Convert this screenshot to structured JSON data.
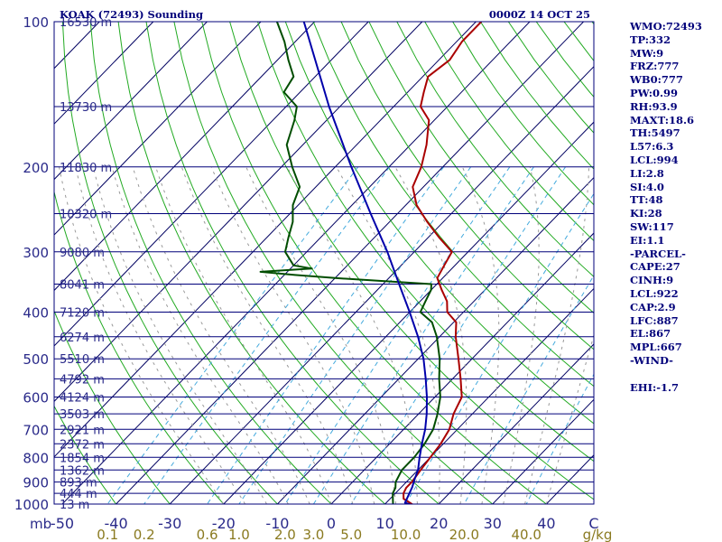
{
  "header": {
    "station": "KOAK (72493) Sounding",
    "time": "0000Z 14 OCT 25"
  },
  "indices": [
    "WMO:72493",
    "TP:332",
    "MW:9",
    "FRZ:777",
    "WB0:777",
    "PW:0.99",
    "RH:93.9",
    "MAXT:18.6",
    "TH:5497",
    "L57:6.3",
    "LCL:994",
    "LI:2.8",
    "SI:4.0",
    "TT:48",
    "KI:28",
    "SW:117",
    "EI:1.1",
    "-PARCEL-",
    "CAPE:27",
    "CINH:9",
    "LCL:922",
    "CAP:2.9",
    "LFC:887",
    "EL:867",
    "MPL:667",
    "-WIND-",
    "",
    "EHI:-1.7"
  ],
  "colors": {
    "frame": "#00007a",
    "isobar": "#00007a",
    "isotherm": "#000060",
    "dry_adiabat": "#22aa22",
    "moist_adiabat": "#999999",
    "mixing_ratio": "#44aadd",
    "temperature": "#aa0000",
    "dewpoint": "#004d00",
    "parcel": "#0000aa",
    "pressure_label": "#2a2a8a",
    "temp_label": "#2a2a8a",
    "mixing_label": "#8a7a20",
    "height_label": "#2a2a8a"
  },
  "chart_data": {
    "type": "line",
    "subtype": "skew-T log-p sounding",
    "pressure_axis_mb": [
      100,
      200,
      300,
      400,
      500,
      600,
      700,
      800,
      900,
      1000
    ],
    "pressure_axis_unit": "mb",
    "temperature_ticks_c": [
      "-50",
      "-40",
      "-30",
      "-20",
      "-10",
      "0",
      "10",
      "20",
      "30",
      "40"
    ],
    "temperature_axis_unit": "C",
    "mixing_ratio_ticks": [
      "0.1",
      "0.2",
      "0.6",
      "1.0",
      "2.0",
      "3.0",
      "5.0",
      "10.0",
      "20.0",
      "40.0"
    ],
    "mixing_ratio_unit": "g/kg",
    "height_levels": [
      {
        "p": 100,
        "label": "16530 m"
      },
      {
        "p": 150,
        "label": "13730 m"
      },
      {
        "p": 200,
        "label": "11830 m"
      },
      {
        "p": 250,
        "label": "10320 m"
      },
      {
        "p": 300,
        "label": "9080 m"
      },
      {
        "p": 350,
        "label": "8041 m"
      },
      {
        "p": 400,
        "label": "7120 m"
      },
      {
        "p": 450,
        "label": "6274 m"
      },
      {
        "p": 500,
        "label": "5510 m"
      },
      {
        "p": 550,
        "label": "4792 m"
      },
      {
        "p": 600,
        "label": "4124 m"
      },
      {
        "p": 650,
        "label": "3503 m"
      },
      {
        "p": 700,
        "label": "2921 m"
      },
      {
        "p": 750,
        "label": "2372 m"
      },
      {
        "p": 800,
        "label": "1854 m"
      },
      {
        "p": 850,
        "label": "1362 m"
      },
      {
        "p": 900,
        "label": "893 m"
      },
      {
        "p": 950,
        "label": "444 m"
      },
      {
        "p": 1000,
        "label": "13 m"
      }
    ],
    "series": [
      {
        "name": "temperature",
        "points": [
          [
            1013,
            16.5
          ],
          [
            1000,
            15
          ],
          [
            975,
            12.5
          ],
          [
            950,
            11.5
          ],
          [
            925,
            11
          ],
          [
            900,
            11
          ],
          [
            850,
            10.5
          ],
          [
            800,
            10
          ],
          [
            750,
            9.5
          ],
          [
            700,
            8.5
          ],
          [
            650,
            6.5
          ],
          [
            600,
            5
          ],
          [
            550,
            1.5
          ],
          [
            500,
            -2.5
          ],
          [
            450,
            -7
          ],
          [
            420,
            -9.5
          ],
          [
            400,
            -13
          ],
          [
            380,
            -15
          ],
          [
            360,
            -18
          ],
          [
            340,
            -21
          ],
          [
            320,
            -22
          ],
          [
            300,
            -23
          ],
          [
            280,
            -28
          ],
          [
            260,
            -33
          ],
          [
            240,
            -38
          ],
          [
            220,
            -42
          ],
          [
            200,
            -44
          ],
          [
            180,
            -47
          ],
          [
            160,
            -51
          ],
          [
            150,
            -55
          ],
          [
            140,
            -57
          ],
          [
            130,
            -59
          ],
          [
            120,
            -58
          ],
          [
            110,
            -59
          ],
          [
            100,
            -59
          ]
        ]
      },
      {
        "name": "dewpoint",
        "points": [
          [
            1013,
            13
          ],
          [
            1000,
            11.5
          ],
          [
            975,
            10.5
          ],
          [
            950,
            9.5
          ],
          [
            925,
            9
          ],
          [
            900,
            8
          ],
          [
            850,
            7
          ],
          [
            800,
            7
          ],
          [
            750,
            6.5
          ],
          [
            700,
            5.5
          ],
          [
            650,
            3.5
          ],
          [
            600,
            1
          ],
          [
            550,
            -2.5
          ],
          [
            500,
            -6
          ],
          [
            450,
            -10.5
          ],
          [
            420,
            -14
          ],
          [
            400,
            -18
          ],
          [
            380,
            -19
          ],
          [
            360,
            -20
          ],
          [
            350,
            -21
          ],
          [
            340,
            -40
          ],
          [
            335,
            -48
          ],
          [
            330,
            -55
          ],
          [
            325,
            -46
          ],
          [
            320,
            -50
          ],
          [
            300,
            -54
          ],
          [
            280,
            -56
          ],
          [
            260,
            -58
          ],
          [
            240,
            -61
          ],
          [
            220,
            -63
          ],
          [
            200,
            -68
          ],
          [
            180,
            -73
          ],
          [
            160,
            -76
          ],
          [
            150,
            -78
          ],
          [
            140,
            -83
          ],
          [
            130,
            -84
          ],
          [
            120,
            -88
          ],
          [
            110,
            -92
          ],
          [
            100,
            -97
          ]
        ]
      },
      {
        "name": "parcel",
        "points": [
          [
            1013,
            16.5
          ],
          [
            994,
            13.5
          ],
          [
            922,
            12
          ],
          [
            887,
            11
          ],
          [
            850,
            10
          ],
          [
            800,
            8
          ],
          [
            750,
            6
          ],
          [
            700,
            4
          ],
          [
            650,
            1.5
          ],
          [
            600,
            -1.5
          ],
          [
            550,
            -5
          ],
          [
            500,
            -9
          ],
          [
            450,
            -14
          ],
          [
            400,
            -20
          ],
          [
            350,
            -27
          ],
          [
            300,
            -35
          ],
          [
            250,
            -45
          ],
          [
            200,
            -57
          ],
          [
            150,
            -72
          ],
          [
            100,
            -92
          ]
        ]
      }
    ]
  }
}
